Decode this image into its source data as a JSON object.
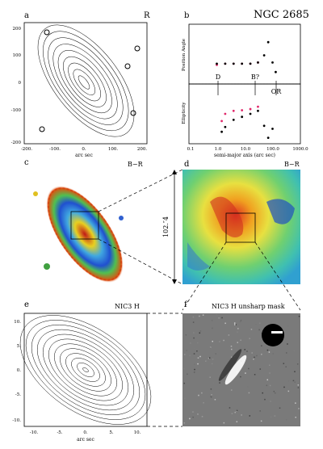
{
  "figure": {
    "panel_a": {
      "label": "a",
      "corner": "R",
      "y_ticks": [
        "200",
        "100",
        "0",
        "-100",
        "-200"
      ],
      "x_ticks": [
        "-200.",
        "-100.",
        "0.",
        "100.",
        "200."
      ],
      "x_label": "arc sec"
    },
    "panel_b": {
      "label": "b",
      "title": "NGC 2685",
      "y_label_top": "Position Angle",
      "y_label_bottom": "Ellipticity",
      "x_ticks": [
        "0.1",
        "1.0",
        "10.0",
        "100.0",
        "1000.0"
      ],
      "x_label": "semi-major axis (arc sec)",
      "annotations": [
        "D",
        "B?",
        "OR"
      ],
      "colors": {
        "red": "#e0286a",
        "black": "#000000"
      }
    },
    "panel_c": {
      "label": "c",
      "corner": "B−R"
    },
    "panel_d": {
      "label": "d",
      "corner": "B−R",
      "scale": "102.″4"
    },
    "panel_e": {
      "label": "e",
      "corner": "NIC3 H",
      "y_ticks": [
        "10.",
        "5.",
        "0.",
        "-5.",
        "-10."
      ],
      "x_ticks": [
        "-10.",
        "-5.",
        "0.",
        "5.",
        "10."
      ],
      "x_label": "arc sec"
    },
    "panel_f": {
      "label": "f",
      "corner": "NIC3 H unsharp mask"
    }
  },
  "chart_data": {
    "type": "scatter",
    "x_scale": "log",
    "xlim": [
      0.1,
      1000
    ],
    "series": [
      {
        "panel": "position-angle",
        "color": "red",
        "x": [
          1,
          2,
          4,
          8,
          16,
          30
        ],
        "y": [
          36,
          37,
          37,
          37,
          37,
          38
        ]
      },
      {
        "panel": "position-angle",
        "color": "black",
        "x": [
          1,
          2,
          4,
          8,
          16,
          30,
          50,
          70,
          100,
          130
        ],
        "y": [
          37,
          37,
          37,
          37,
          37,
          38,
          44,
          55,
          38,
          30
        ]
      },
      {
        "panel": "ellipticity",
        "color": "red",
        "x": [
          1.5,
          2,
          4,
          8,
          16,
          30
        ],
        "y": [
          0.38,
          0.5,
          0.55,
          0.56,
          0.58,
          0.62
        ]
      },
      {
        "panel": "ellipticity",
        "color": "black",
        "x": [
          1.5,
          2,
          4,
          8,
          16,
          30,
          50,
          70,
          100
        ],
        "y": [
          0.2,
          0.28,
          0.4,
          0.45,
          0.5,
          0.55,
          0.3,
          0.1,
          0.25
        ]
      }
    ]
  }
}
